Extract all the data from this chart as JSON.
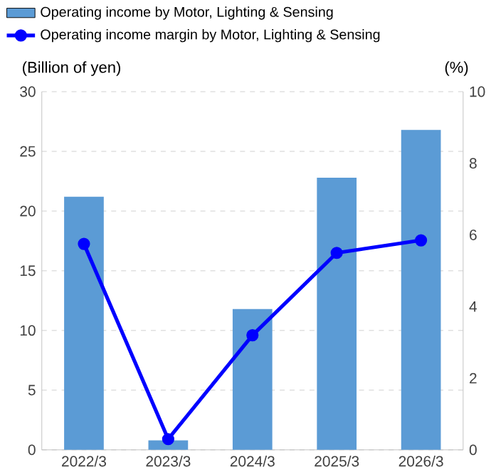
{
  "chart_data": {
    "type": "bar",
    "categories": [
      "2022/3",
      "2023/3",
      "2024/3",
      "2025/3",
      "2026/3"
    ],
    "series": [
      {
        "name": "Operating income by Motor, Lighting & Sensing",
        "color": "#5b9bd5",
        "values": [
          21.2,
          0.8,
          11.8,
          22.8,
          26.8
        ]
      },
      {
        "name": "Operating income margin by Motor, Lighting & Sensing",
        "type": "line",
        "axis": "y2",
        "color": "#0000ff",
        "marker": "circle",
        "values": [
          5.75,
          0.3,
          3.2,
          5.5,
          5.85
        ]
      }
    ],
    "ylabel": "(Billion of yen)",
    "y2label": "(%)",
    "ylim": [
      0,
      30
    ],
    "yticks": [
      0,
      5,
      10,
      15,
      20,
      25,
      30
    ],
    "y2lim": [
      0,
      10
    ],
    "y2ticks": [
      0,
      2,
      4,
      6,
      8,
      10
    ],
    "grid": "y",
    "legend": "top"
  }
}
